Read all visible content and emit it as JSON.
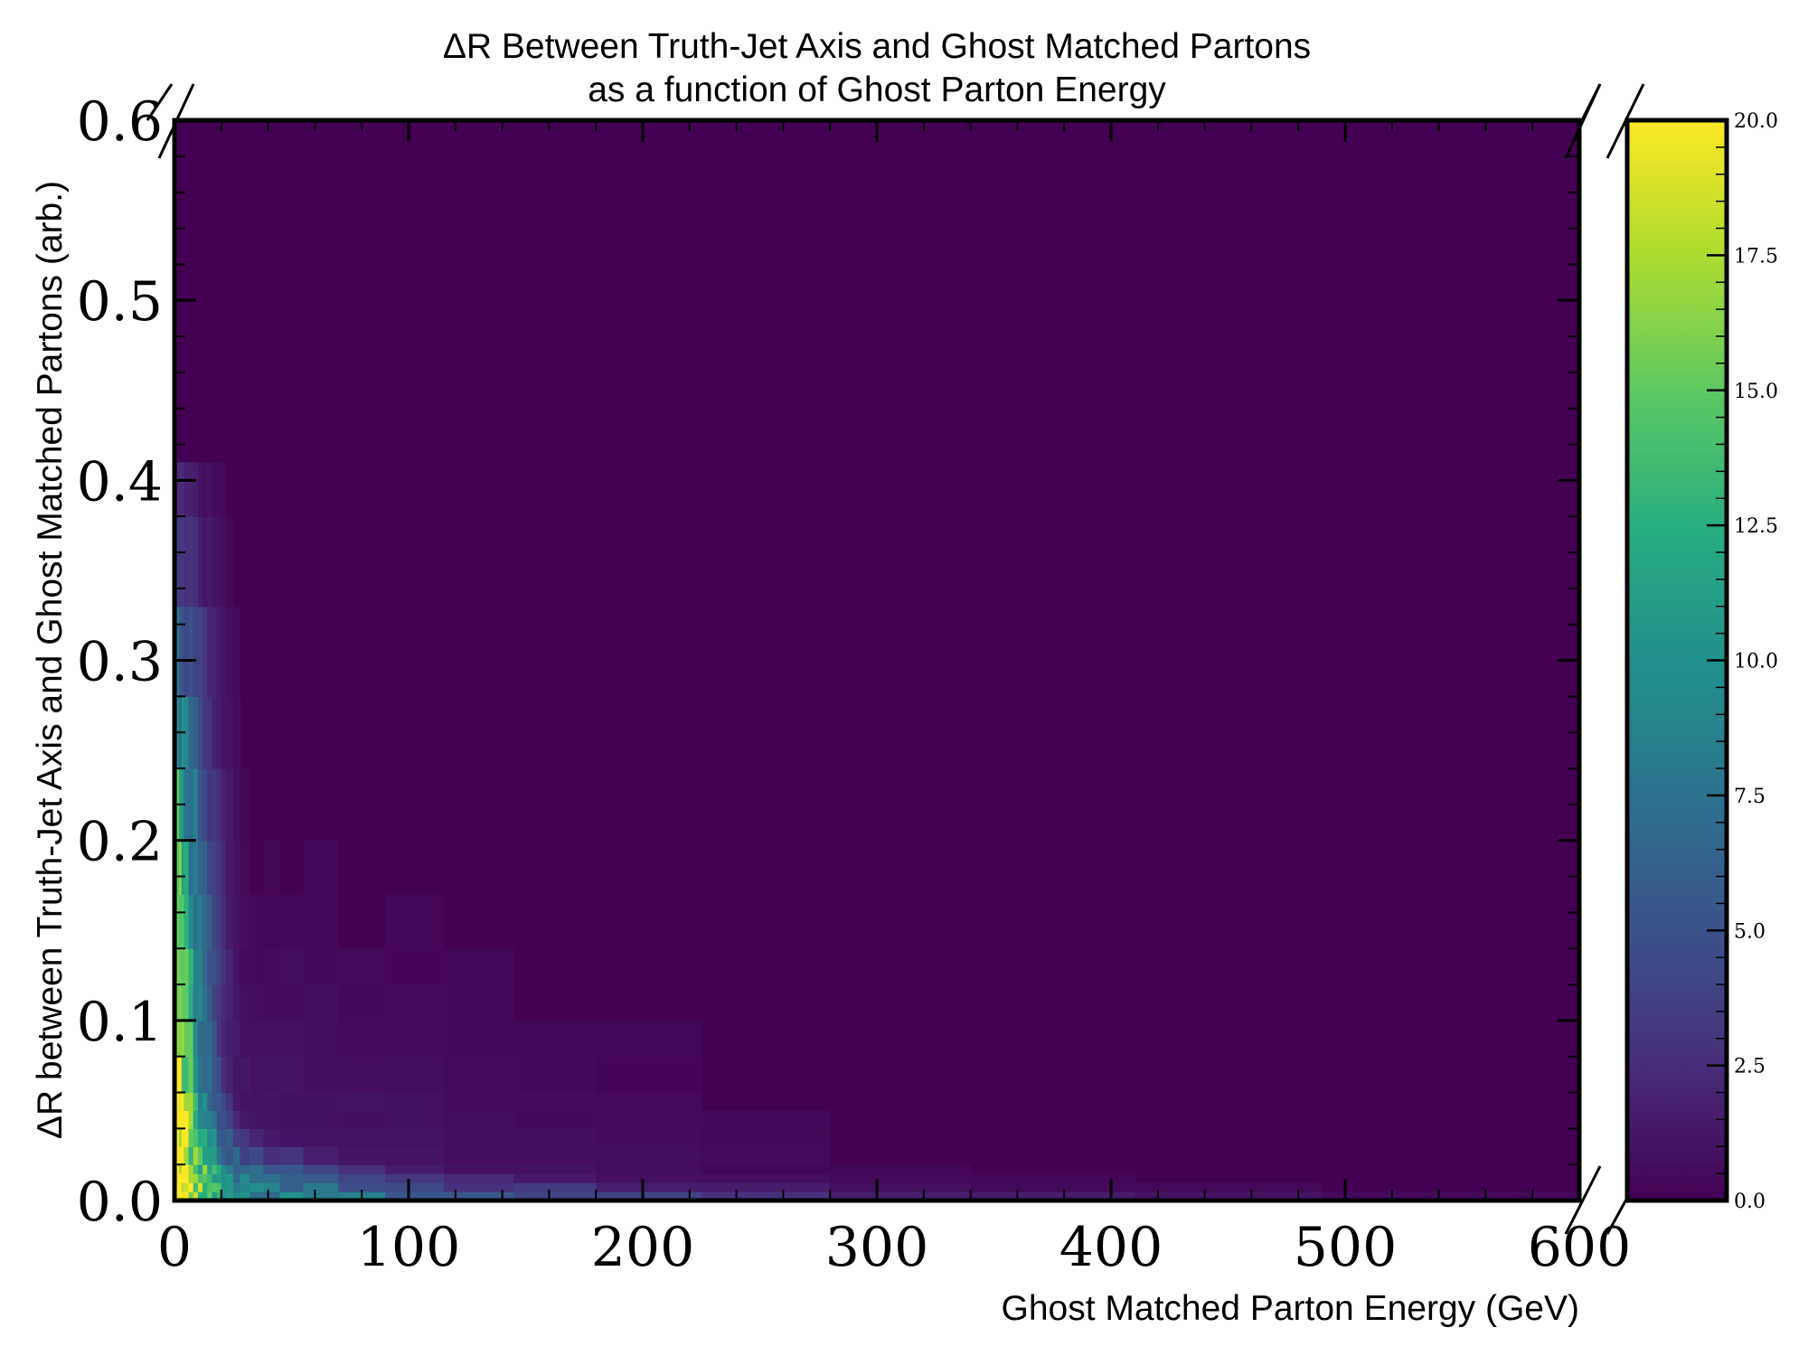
{
  "chart_data": {
    "type": "heatmap",
    "title": "ΔR Between Truth-Jet Axis and Ghost Matched Partons",
    "subtitle": "as a function of Ghost Parton Energy",
    "xlabel": "Ghost Matched Parton Energy (GeV)",
    "ylabel": "ΔR between Truth-Jet Axis and Ghost Matched Partons (arb.)",
    "xlim": [
      0,
      600
    ],
    "ylim": [
      0,
      0.6
    ],
    "x_ticks": [
      "0",
      "100",
      "200",
      "300",
      "400",
      "500",
      "600"
    ],
    "y_ticks": [
      "0.0",
      "0.1",
      "0.2",
      "0.3",
      "0.4",
      "0.5",
      "0.6"
    ],
    "colorbar": {
      "colormap": "viridis",
      "range": [
        0,
        20
      ],
      "ticks": [
        "0.0",
        "2.5",
        "5.0",
        "7.5",
        "10.0",
        "12.5",
        "15.0",
        "17.5",
        "20.0"
      ]
    },
    "density_shape": "counts concentrated at low energy (below ~30 GeV) spanning ΔR up to ~0.4, peaking near 15–20 around ΔR 0.05–0.2, and falling off as ΔR ≈ 1/E toward small ΔR at high energy",
    "grid": false,
    "legend": "none"
  }
}
